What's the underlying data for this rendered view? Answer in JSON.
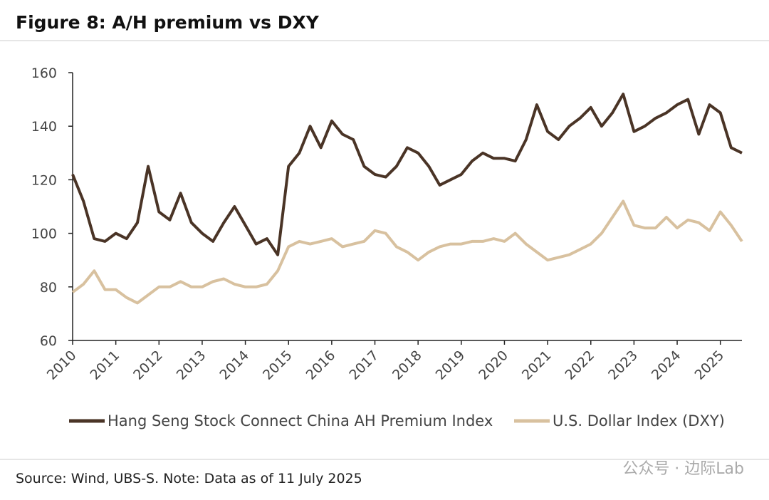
{
  "chart_data": {
    "type": "line",
    "title": "Figure 8: A/H premium vs DXY",
    "source": "Source: Wind, UBS-S. Note: Data as of 11 July 2025",
    "watermark": "公众号 · 边际Lab",
    "x": [
      2010,
      2010.25,
      2010.5,
      2010.75,
      2011,
      2011.25,
      2011.5,
      2011.75,
      2012,
      2012.25,
      2012.5,
      2012.75,
      2013,
      2013.25,
      2013.5,
      2013.75,
      2014,
      2014.25,
      2014.5,
      2014.75,
      2015,
      2015.25,
      2015.5,
      2015.75,
      2016,
      2016.25,
      2016.5,
      2016.75,
      2017,
      2017.25,
      2017.5,
      2017.75,
      2018,
      2018.25,
      2018.5,
      2018.75,
      2019,
      2019.25,
      2019.5,
      2019.75,
      2020,
      2020.25,
      2020.5,
      2020.75,
      2021,
      2021.25,
      2021.5,
      2021.75,
      2022,
      2022.25,
      2022.5,
      2022.75,
      2023,
      2023.25,
      2023.5,
      2023.75,
      2024,
      2024.25,
      2024.5,
      2024.75,
      2025,
      2025.25,
      2025.5
    ],
    "series": [
      {
        "name": "Hang Seng Stock Connect China AH Premium Index",
        "color": "#4a3426",
        "values": [
          122,
          112,
          98,
          97,
          100,
          98,
          104,
          125,
          108,
          105,
          115,
          104,
          100,
          97,
          104,
          110,
          103,
          96,
          98,
          92,
          125,
          130,
          140,
          132,
          142,
          137,
          135,
          125,
          122,
          121,
          125,
          132,
          130,
          125,
          118,
          120,
          122,
          127,
          130,
          128,
          128,
          127,
          135,
          148,
          138,
          135,
          140,
          143,
          147,
          140,
          145,
          152,
          138,
          140,
          143,
          145,
          148,
          150,
          137,
          148,
          145,
          132,
          130
        ]
      },
      {
        "name": "U.S. Dollar Index (DXY)",
        "color": "#d8c19f",
        "values": [
          78,
          81,
          86,
          79,
          79,
          76,
          74,
          77,
          80,
          80,
          82,
          80,
          80,
          82,
          83,
          81,
          80,
          80,
          81,
          86,
          95,
          97,
          96,
          97,
          98,
          95,
          96,
          97,
          101,
          100,
          95,
          93,
          90,
          93,
          95,
          96,
          96,
          97,
          97,
          98,
          97,
          100,
          96,
          93,
          90,
          91,
          92,
          94,
          96,
          100,
          106,
          112,
          103,
          102,
          102,
          106,
          102,
          105,
          104,
          101,
          108,
          103,
          97
        ]
      }
    ],
    "xlim": [
      2010,
      2025.5
    ],
    "xticks": [
      2010,
      2011,
      2012,
      2013,
      2014,
      2015,
      2016,
      2017,
      2018,
      2019,
      2020,
      2021,
      2022,
      2023,
      2024,
      2025
    ],
    "ylim": [
      60,
      160
    ],
    "yticks": [
      60,
      80,
      100,
      120,
      140,
      160
    ],
    "grid": false,
    "legend": "bottom"
  }
}
